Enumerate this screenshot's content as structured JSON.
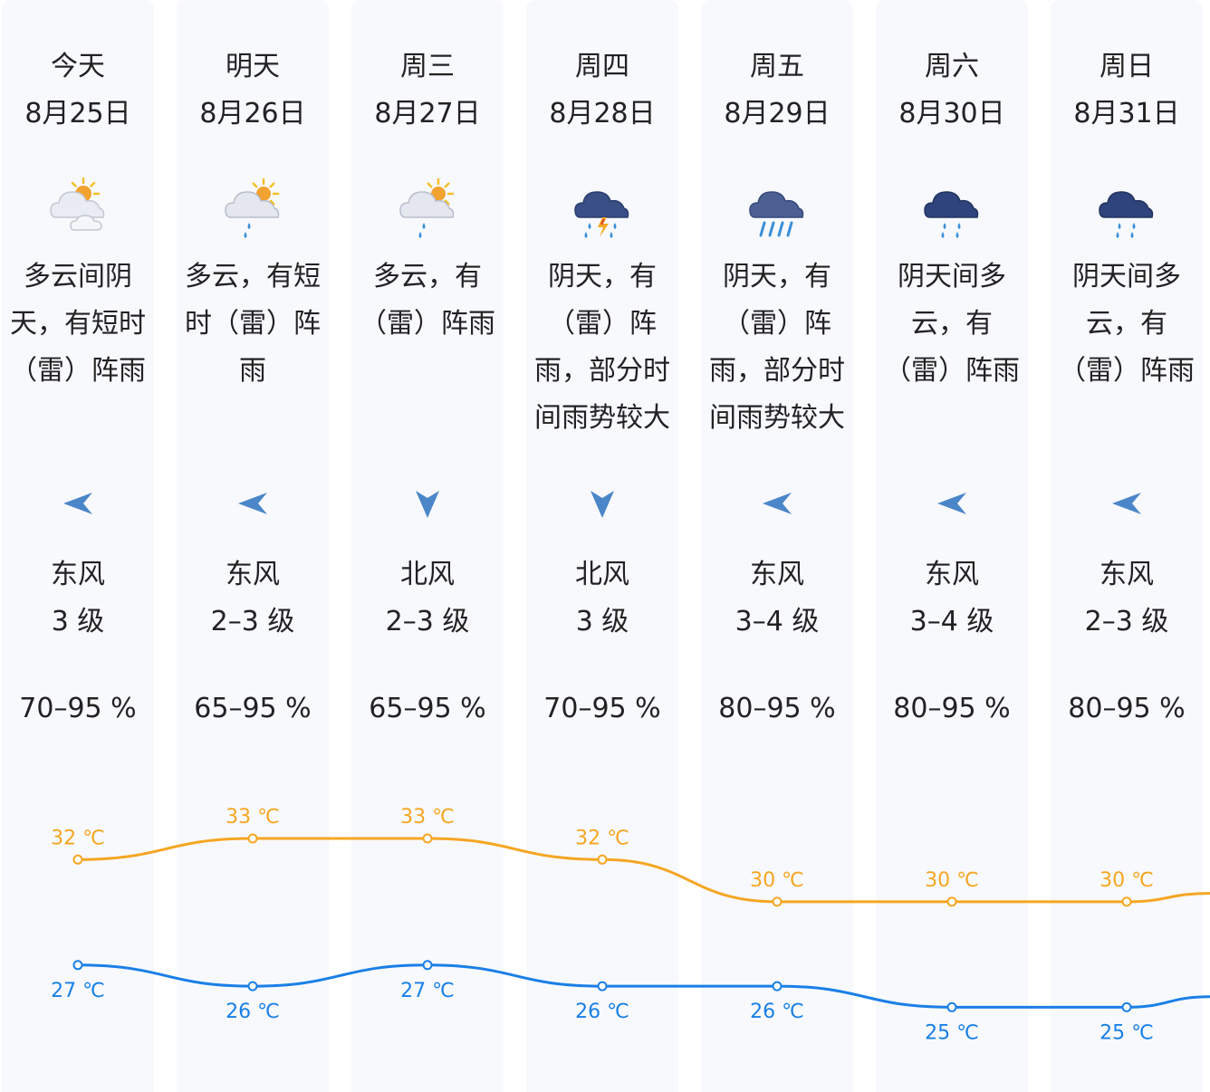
{
  "days": [
    {
      "name": "今天",
      "date": "8月25日",
      "desc_lines": [
        "多云间阴",
        "天，有短时",
        "（雷）阵雨"
      ],
      "icon": "partly-cloudy-sun-icon",
      "wind_dir": "东风",
      "wind_level": "3 级",
      "wind_arrow": "arrow-left-icon",
      "humidity": "70–95 %"
    },
    {
      "name": "明天",
      "date": "8月26日",
      "desc_lines": [
        "多云，有短",
        "时（雷）阵",
        "雨"
      ],
      "icon": "sun-cloud-rain-icon",
      "wind_dir": "东风",
      "wind_level": "2–3 级",
      "wind_arrow": "arrow-left-icon",
      "humidity": "65–95 %"
    },
    {
      "name": "周三",
      "date": "8月27日",
      "desc_lines": [
        "多云，有",
        "（雷）阵雨"
      ],
      "icon": "sun-cloud-rain-icon",
      "wind_dir": "北风",
      "wind_level": "2–3 级",
      "wind_arrow": "arrow-down-icon",
      "humidity": "65–95 %"
    },
    {
      "name": "周四",
      "date": "8月28日",
      "desc_lines": [
        "阴天，有",
        "（雷）阵",
        "雨，部分时",
        "间雨势较大"
      ],
      "icon": "thunderstorm-icon",
      "wind_dir": "北风",
      "wind_level": "3 级",
      "wind_arrow": "arrow-down-icon",
      "humidity": "70–95 %"
    },
    {
      "name": "周五",
      "date": "8月29日",
      "desc_lines": [
        "阴天，有",
        "（雷）阵",
        "雨，部分时",
        "间雨势较大"
      ],
      "icon": "heavy-rain-icon",
      "wind_dir": "东风",
      "wind_level": "3–4 级",
      "wind_arrow": "arrow-left-icon",
      "humidity": "80–95 %"
    },
    {
      "name": "周六",
      "date": "8月30日",
      "desc_lines": [
        "阴天间多",
        "云，有",
        "（雷）阵雨"
      ],
      "icon": "dark-cloud-rain-icon",
      "wind_dir": "东风",
      "wind_level": "3–4 级",
      "wind_arrow": "arrow-left-icon",
      "humidity": "80–95 %"
    },
    {
      "name": "周日",
      "date": "8月31日",
      "desc_lines": [
        "阴天间多",
        "云，有",
        "（雷）阵雨"
      ],
      "icon": "dark-cloud-rain-icon",
      "wind_dir": "东风",
      "wind_level": "2–3 级",
      "wind_arrow": "arrow-left-icon",
      "humidity": "80–95 %"
    }
  ],
  "chart_data": {
    "type": "line",
    "categories": [
      "8月25日",
      "8月26日",
      "8月27日",
      "8月28日",
      "8月29日",
      "8月30日",
      "8月31日"
    ],
    "unit": "℃",
    "series": [
      {
        "key": "high",
        "values": [
          32,
          33,
          33,
          32,
          30,
          30,
          30
        ],
        "color": "#f5a623"
      },
      {
        "key": "low",
        "values": [
          27,
          26,
          27,
          26,
          26,
          25,
          25
        ],
        "color": "#1a7fe6"
      }
    ],
    "trailing_values": {
      "high": 30.4,
      "low": 25.5
    },
    "grid": false,
    "legend": "none"
  },
  "colors": {
    "column_bg": "#f8f9fd",
    "arrow": "#4a86c8",
    "text": "#222222"
  }
}
